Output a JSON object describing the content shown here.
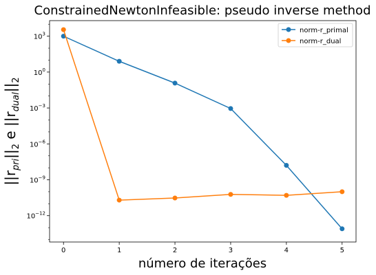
{
  "chart_data": {
    "type": "line",
    "title": "ConstrainedNewtonInfeasible: pseudo inverse method",
    "xlabel": "número de iterações",
    "ylabel_parts": [
      "||r",
      "pri",
      "||",
      "2",
      " e ||r",
      "dual",
      "||",
      "2"
    ],
    "x": [
      0,
      1,
      2,
      3,
      4,
      5
    ],
    "xticks": [
      "0",
      "1",
      "2",
      "3",
      "4",
      "5"
    ],
    "xlim": [
      -0.25,
      5.25
    ],
    "yscale": "log",
    "ylim_exp": [
      -14.2,
      4.3
    ],
    "yticks": [
      {
        "exp": 3,
        "base": "10",
        "sup": "3"
      },
      {
        "exp": 0,
        "base": "10",
        "sup": "0"
      },
      {
        "exp": -3,
        "base": "10",
        "sup": "−3"
      },
      {
        "exp": -6,
        "base": "10",
        "sup": "−6"
      },
      {
        "exp": -9,
        "base": "10",
        "sup": "−9"
      },
      {
        "exp": -12,
        "base": "10",
        "sup": "−12"
      }
    ],
    "series": [
      {
        "name": "norm-r_primal",
        "color": "#1f77b4",
        "values": [
          1000,
          8,
          0.12,
          0.0009,
          1.6e-08,
          8e-14
        ]
      },
      {
        "name": "norm-r_dual",
        "color": "#ff7f0e",
        "values": [
          3500,
          2e-11,
          3e-11,
          6e-11,
          5e-11,
          1e-10
        ]
      }
    ],
    "legend_position": "top-right",
    "grid": false
  }
}
